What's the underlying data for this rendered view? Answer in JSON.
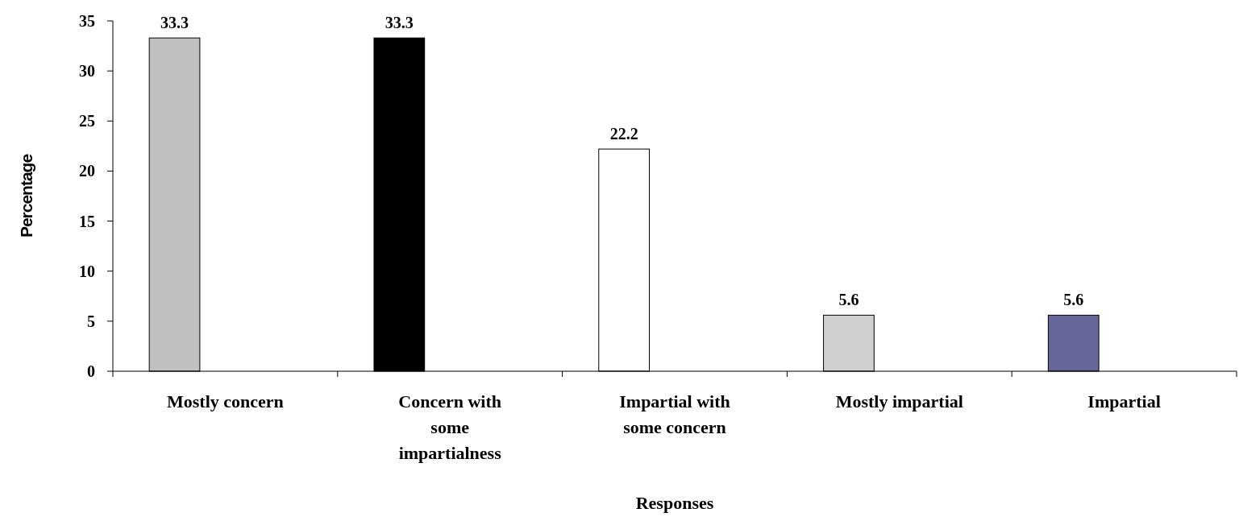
{
  "chart_data": {
    "type": "bar",
    "xlabel": "Responses",
    "ylabel": "Percentage",
    "categories": [
      "Mostly concern",
      "Concern with some impartialness",
      "Impartial with some concern",
      "Mostly impartial",
      "Impartial"
    ],
    "values": [
      33.3,
      33.3,
      22.2,
      5.6,
      5.6
    ],
    "colors": [
      "#c0c0c0",
      "#000000",
      "#ffffff",
      "#d0d0d0",
      "#666699"
    ],
    "ylim": [
      0,
      35
    ],
    "yticks": [
      0,
      5,
      10,
      15,
      20,
      25,
      30,
      35
    ],
    "grid": false,
    "data_labels": true
  }
}
